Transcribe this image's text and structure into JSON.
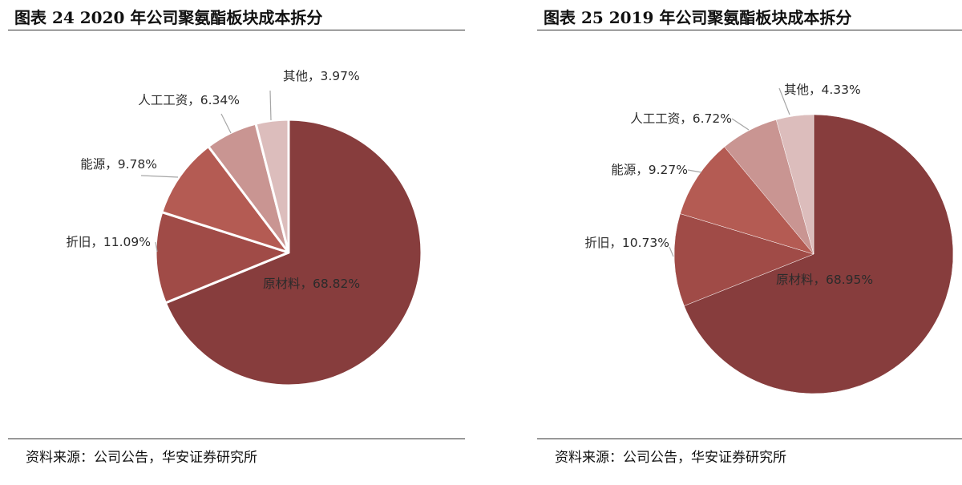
{
  "chart_data": [
    {
      "type": "pie",
      "title": "图表 24 2020 年公司聚氨酯板块成本拆分",
      "slices": [
        {
          "label": "原材料",
          "value": 68.82,
          "text": "原材料，68.82%",
          "color": "#873d3d"
        },
        {
          "label": "折旧",
          "value": 11.09,
          "text": "折旧，11.09%",
          "color": "#a04b47"
        },
        {
          "label": "能源",
          "value": 9.78,
          "text": "能源，9.78%",
          "color": "#b45b53"
        },
        {
          "label": "人工工资",
          "value": 6.34,
          "text": "人工工资，6.34%",
          "color": "#c99592"
        },
        {
          "label": "其他",
          "value": 3.97,
          "text": "其他，3.97%",
          "color": "#dcbdbc"
        }
      ],
      "source": "资料来源：公司公告，华安证券研究所"
    },
    {
      "type": "pie",
      "title": "图表 25 2019 年公司聚氨酯板块成本拆分",
      "slices": [
        {
          "label": "原材料",
          "value": 68.95,
          "text": "原材料，68.95%",
          "color": "#873d3d"
        },
        {
          "label": "折旧",
          "value": 10.73,
          "text": "折旧，10.73%",
          "color": "#a04b47"
        },
        {
          "label": "能源",
          "value": 9.27,
          "text": "能源，9.27%",
          "color": "#b45b53"
        },
        {
          "label": "人工工资",
          "value": 6.72,
          "text": "人工工资，6.72%",
          "color": "#c99592"
        },
        {
          "label": "其他",
          "value": 4.33,
          "text": "其他，4.33%",
          "color": "#dcbdbc"
        }
      ],
      "source": "资料来源：公司公告，华安证券研究所"
    }
  ]
}
